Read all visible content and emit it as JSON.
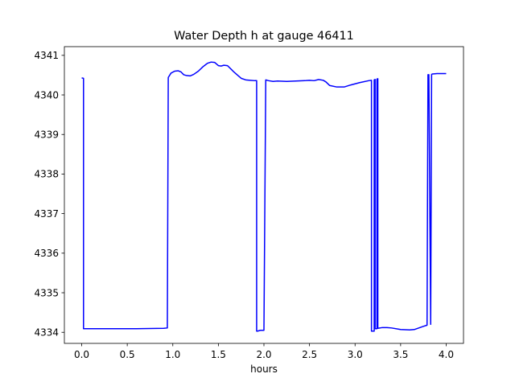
{
  "chart_data": {
    "type": "line",
    "title": "Water Depth h at gauge 46411",
    "xlabel": "hours",
    "ylabel": "",
    "xlim": [
      -0.19,
      4.19
    ],
    "ylim": [
      4333.72,
      4341.22
    ],
    "xticks": [
      0.0,
      0.5,
      1.0,
      1.5,
      2.0,
      2.5,
      3.0,
      3.5,
      4.0
    ],
    "xtick_labels": [
      "0.0",
      "0.5",
      "1.0",
      "1.5",
      "2.0",
      "2.5",
      "3.0",
      "3.5",
      "4.0"
    ],
    "yticks": [
      4334,
      4335,
      4336,
      4337,
      4338,
      4339,
      4340,
      4341
    ],
    "ytick_labels": [
      "4334",
      "4335",
      "4336",
      "4337",
      "4338",
      "4339",
      "4340",
      "4341"
    ],
    "grid": false,
    "series": [
      {
        "color": "#0000ff",
        "x": [
          0.0,
          0.02,
          0.02,
          0.03,
          0.3,
          0.6,
          0.9,
          0.94,
          0.95,
          0.98,
          1.02,
          1.06,
          1.09,
          1.12,
          1.15,
          1.19,
          1.23,
          1.28,
          1.33,
          1.38,
          1.42,
          1.46,
          1.5,
          1.53,
          1.56,
          1.6,
          1.64,
          1.67,
          1.7,
          1.75,
          1.8,
          1.85,
          1.9,
          1.92,
          1.92,
          1.93,
          1.96,
          2.0,
          2.0,
          2.02,
          2.02,
          2.05,
          2.1,
          2.15,
          2.25,
          2.35,
          2.45,
          2.5,
          2.55,
          2.6,
          2.65,
          2.68,
          2.72,
          2.8,
          2.88,
          2.95,
          3.05,
          3.15,
          3.18,
          3.18,
          3.21,
          3.21,
          3.22,
          3.22,
          3.24,
          3.24,
          3.25,
          3.25,
          3.3,
          3.35,
          3.4,
          3.5,
          3.6,
          3.65,
          3.7,
          3.75,
          3.79,
          3.8,
          3.81,
          3.83,
          3.83,
          3.84,
          3.85,
          3.9,
          4.0
        ],
        "y": [
          4340.43,
          4340.42,
          4334.09,
          4334.09,
          4334.09,
          4334.09,
          4334.1,
          4334.11,
          4340.44,
          4340.55,
          4340.6,
          4340.61,
          4340.58,
          4340.51,
          4340.49,
          4340.48,
          4340.52,
          4340.6,
          4340.71,
          4340.8,
          4340.83,
          4340.82,
          4340.74,
          4340.73,
          4340.75,
          4340.74,
          4340.65,
          4340.58,
          4340.52,
          4340.42,
          4340.38,
          4340.37,
          4340.36,
          4340.36,
          4334.03,
          4334.03,
          4334.05,
          4334.05,
          4334.05,
          4340.38,
          4340.38,
          4340.36,
          4340.34,
          4340.35,
          4340.34,
          4340.35,
          4340.36,
          4340.37,
          4340.36,
          4340.39,
          4340.37,
          4340.33,
          4340.24,
          4340.2,
          4340.2,
          4340.25,
          4340.31,
          4340.36,
          4340.37,
          4334.03,
          4334.03,
          4340.38,
          4340.39,
          4334.09,
          4334.09,
          4340.4,
          4340.41,
          4334.1,
          4334.12,
          4334.12,
          4334.11,
          4334.07,
          4334.06,
          4334.07,
          4334.11,
          4334.15,
          4334.18,
          4340.51,
          4340.51,
          4334.2,
          4334.2,
          4340.52,
          4340.53,
          4340.54,
          4340.54
        ]
      }
    ]
  }
}
